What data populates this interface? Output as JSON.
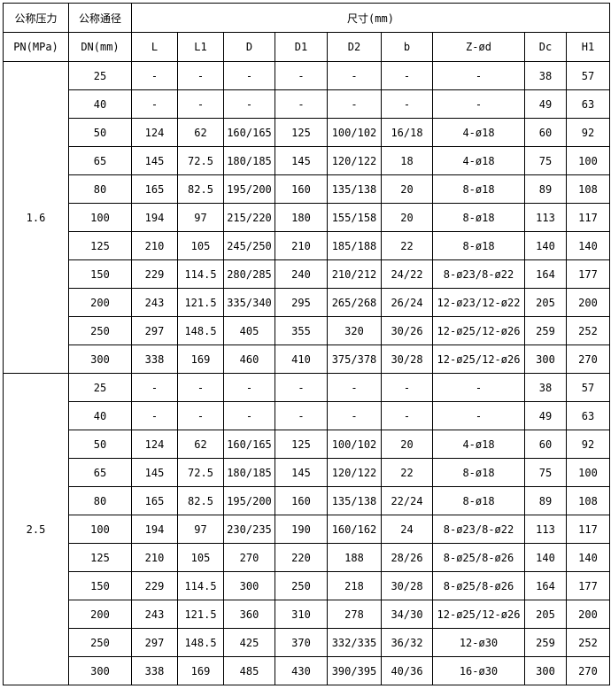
{
  "header": {
    "pressure_line1": "公称压力",
    "pressure_line2": "PN(MPa)",
    "dn_line1": "公称通径",
    "dn_line2": "DN(mm)",
    "dimensions": "尺寸(mm)",
    "columns": [
      "L",
      "L1",
      "D",
      "D1",
      "D2",
      "b",
      "Z-ød",
      "Dc",
      "H1"
    ]
  },
  "groups": [
    {
      "pn": "1.6",
      "rows": [
        [
          "25",
          "-",
          "-",
          "-",
          "-",
          "-",
          "-",
          "-",
          "38",
          "57"
        ],
        [
          "40",
          "-",
          "-",
          "-",
          "-",
          "-",
          "-",
          "-",
          "49",
          "63"
        ],
        [
          "50",
          "124",
          "62",
          "160/165",
          "125",
          "100/102",
          "16/18",
          "4-ø18",
          "60",
          "92"
        ],
        [
          "65",
          "145",
          "72.5",
          "180/185",
          "145",
          "120/122",
          "18",
          "4-ø18",
          "75",
          "100"
        ],
        [
          "80",
          "165",
          "82.5",
          "195/200",
          "160",
          "135/138",
          "20",
          "8-ø18",
          "89",
          "108"
        ],
        [
          "100",
          "194",
          "97",
          "215/220",
          "180",
          "155/158",
          "20",
          "8-ø18",
          "113",
          "117"
        ],
        [
          "125",
          "210",
          "105",
          "245/250",
          "210",
          "185/188",
          "22",
          "8-ø18",
          "140",
          "140"
        ],
        [
          "150",
          "229",
          "114.5",
          "280/285",
          "240",
          "210/212",
          "24/22",
          "8-ø23/8-ø22",
          "164",
          "177"
        ],
        [
          "200",
          "243",
          "121.5",
          "335/340",
          "295",
          "265/268",
          "26/24",
          "12-ø23/12-ø22",
          "205",
          "200"
        ],
        [
          "250",
          "297",
          "148.5",
          "405",
          "355",
          "320",
          "30/26",
          "12-ø25/12-ø26",
          "259",
          "252"
        ],
        [
          "300",
          "338",
          "169",
          "460",
          "410",
          "375/378",
          "30/28",
          "12-ø25/12-ø26",
          "300",
          "270"
        ]
      ]
    },
    {
      "pn": "2.5",
      "rows": [
        [
          "25",
          "-",
          "-",
          "-",
          "-",
          "-",
          "-",
          "-",
          "38",
          "57"
        ],
        [
          "40",
          "-",
          "-",
          "-",
          "-",
          "-",
          "-",
          "-",
          "49",
          "63"
        ],
        [
          "50",
          "124",
          "62",
          "160/165",
          "125",
          "100/102",
          "20",
          "4-ø18",
          "60",
          "92"
        ],
        [
          "65",
          "145",
          "72.5",
          "180/185",
          "145",
          "120/122",
          "22",
          "8-ø18",
          "75",
          "100"
        ],
        [
          "80",
          "165",
          "82.5",
          "195/200",
          "160",
          "135/138",
          "22/24",
          "8-ø18",
          "89",
          "108"
        ],
        [
          "100",
          "194",
          "97",
          "230/235",
          "190",
          "160/162",
          "24",
          "8-ø23/8-ø22",
          "113",
          "117"
        ],
        [
          "125",
          "210",
          "105",
          "270",
          "220",
          "188",
          "28/26",
          "8-ø25/8-ø26",
          "140",
          "140"
        ],
        [
          "150",
          "229",
          "114.5",
          "300",
          "250",
          "218",
          "30/28",
          "8-ø25/8-ø26",
          "164",
          "177"
        ],
        [
          "200",
          "243",
          "121.5",
          "360",
          "310",
          "278",
          "34/30",
          "12-ø25/12-ø26",
          "205",
          "200"
        ],
        [
          "250",
          "297",
          "148.5",
          "425",
          "370",
          "332/335",
          "36/32",
          "12-ø30",
          "259",
          "252"
        ],
        [
          "300",
          "338",
          "169",
          "485",
          "430",
          "390/395",
          "40/36",
          "16-ø30",
          "300",
          "270"
        ]
      ]
    }
  ]
}
